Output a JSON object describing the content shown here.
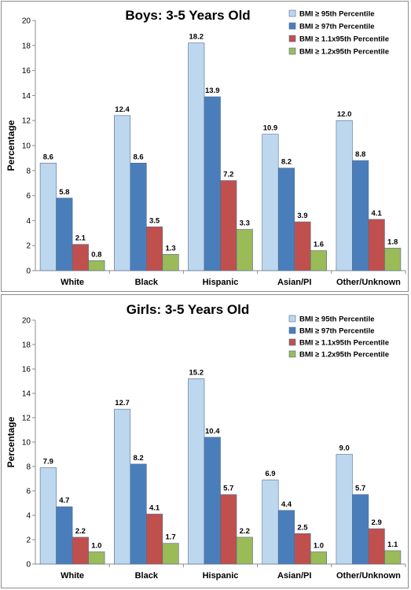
{
  "chart_data": [
    {
      "type": "bar",
      "title": "Boys: 3-5 Years Old",
      "ylabel": "Percentage",
      "xlabel": "",
      "ylim": [
        0,
        20
      ],
      "yticks": [
        0,
        2,
        4,
        6,
        8,
        10,
        12,
        14,
        16,
        18,
        20
      ],
      "categories": [
        "White",
        "Black",
        "Hispanic",
        "Asian/PI",
        "Other/Unknown"
      ],
      "legend_position": "top-right",
      "grid": false,
      "series": [
        {
          "name": "BMI ≥ 95th Percentile",
          "color": "#bdd7ee",
          "values": [
            8.6,
            12.4,
            18.2,
            10.9,
            12.0
          ],
          "labels": [
            "8.6",
            "12.4",
            "18.2",
            "10.9",
            "12.0"
          ]
        },
        {
          "name": "BMI ≥ 97th Percentile",
          "color": "#4a7ebb",
          "values": [
            5.8,
            8.6,
            13.9,
            8.2,
            8.8
          ],
          "labels": [
            "5.8",
            "8.6",
            "13.9",
            "8.2",
            "8.8"
          ]
        },
        {
          "name": "BMI ≥ 1.1x95th Percentile",
          "color": "#c0504d",
          "values": [
            2.1,
            3.5,
            7.2,
            3.9,
            4.1
          ],
          "labels": [
            "2.1",
            "3.5",
            "7.2",
            "3.9",
            "4.1"
          ]
        },
        {
          "name": "BMI ≥ 1.2x95th Percentile",
          "color": "#9bbb59",
          "values": [
            0.8,
            1.3,
            3.3,
            1.6,
            1.8
          ],
          "labels": [
            "0.8",
            "1.3",
            "3.3",
            "1.6",
            "1.8"
          ]
        }
      ]
    },
    {
      "type": "bar",
      "title": "Girls: 3-5 Years Old",
      "ylabel": "Percentage",
      "xlabel": "",
      "ylim": [
        0,
        20
      ],
      "yticks": [
        0,
        2,
        4,
        6,
        8,
        10,
        12,
        14,
        16,
        18,
        20
      ],
      "categories": [
        "White",
        "Black",
        "Hispanic",
        "Asian/PI",
        "Other/Unknown"
      ],
      "legend_position": "top-right",
      "grid": false,
      "series": [
        {
          "name": "BMI ≥ 95th Percentile",
          "color": "#bdd7ee",
          "values": [
            7.9,
            12.7,
            15.2,
            6.9,
            9.0
          ],
          "labels": [
            "7.9",
            "12.7",
            "15.2",
            "6.9",
            "9.0"
          ]
        },
        {
          "name": "BMI ≥ 97th Percentile",
          "color": "#4a7ebb",
          "values": [
            4.7,
            8.2,
            10.4,
            4.4,
            5.7
          ],
          "labels": [
            "4.7",
            "8.2",
            "10.4",
            "4.4",
            "5.7"
          ]
        },
        {
          "name": "BMI ≥ 1.1x95th Percentile",
          "color": "#c0504d",
          "values": [
            2.2,
            4.1,
            5.7,
            2.5,
            2.9
          ],
          "labels": [
            "2.2",
            "4.1",
            "5.7",
            "2.5",
            "2.9"
          ]
        },
        {
          "name": "BMI ≥ 1.2x95th Percentile",
          "color": "#9bbb59",
          "values": [
            1.0,
            1.7,
            2.2,
            1.0,
            1.1
          ],
          "labels": [
            "1.0",
            "1.7",
            "2.2",
            "1.0",
            "1.1"
          ]
        }
      ]
    }
  ]
}
